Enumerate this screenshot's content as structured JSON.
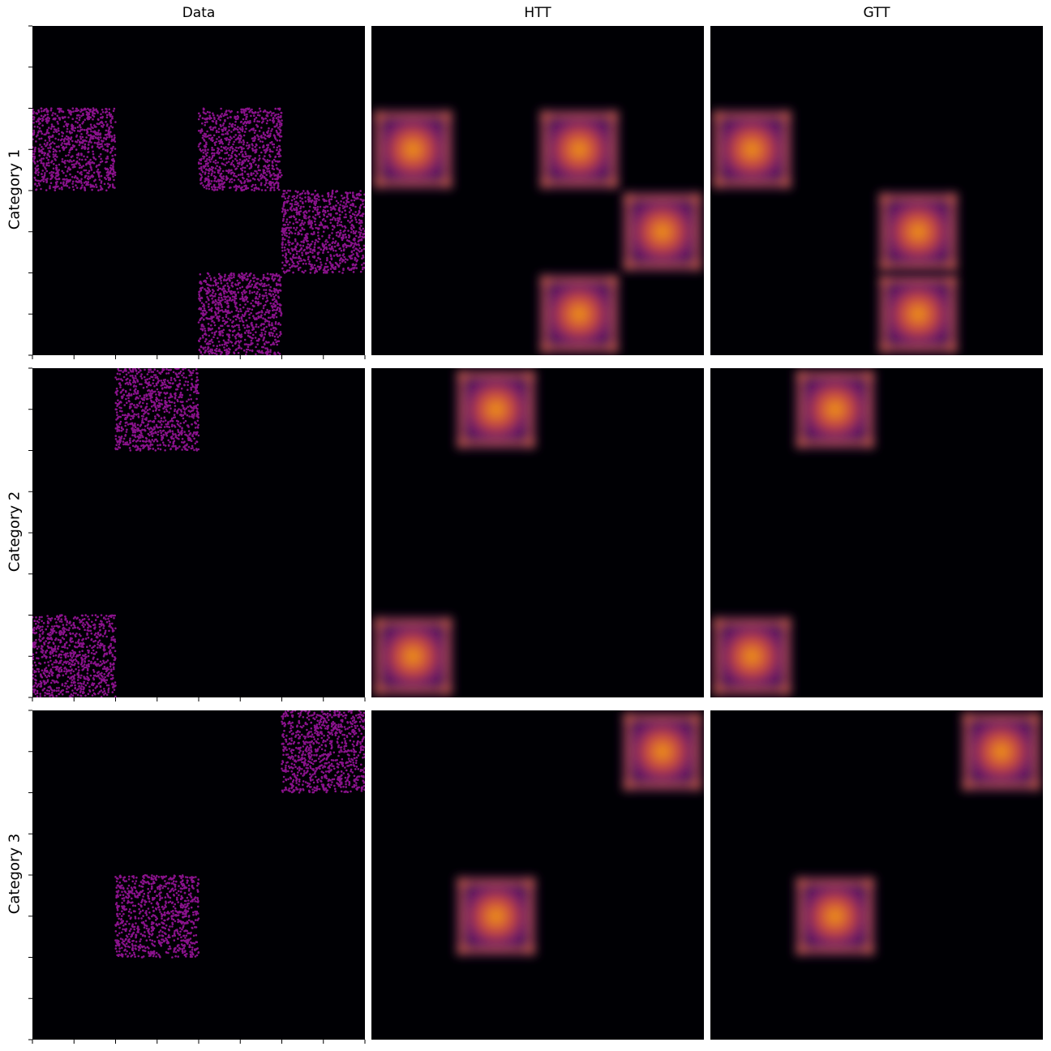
{
  "columns": [
    "Data",
    "HTT",
    "GTT"
  ],
  "rows": [
    "Category 1",
    "Category 2",
    "Category 3"
  ],
  "colors": {
    "background": "#000004",
    "point": "#8a128c",
    "colormap": "inferno"
  },
  "chart_data": {
    "type": "heatmap",
    "layout": "3x3 grid; rows = categories, columns = Data / HTT / GTT",
    "axis_range": [
      0,
      1
    ],
    "block_size": 0.25,
    "panels": [
      {
        "row": "Category 1",
        "col": "Data",
        "kind": "scatter",
        "blocks": [
          [
            0,
            0.5
          ],
          [
            0.5,
            0.5
          ],
          [
            0.75,
            0.25
          ],
          [
            0.5,
            0
          ]
        ]
      },
      {
        "row": "Category 1",
        "col": "HTT",
        "kind": "density",
        "blocks": [
          [
            0,
            0.5
          ],
          [
            0.5,
            0.5
          ],
          [
            0.75,
            0.25
          ],
          [
            0.5,
            0
          ]
        ]
      },
      {
        "row": "Category 1",
        "col": "GTT",
        "kind": "density",
        "blocks": [
          [
            0,
            0.5
          ],
          [
            0.5,
            0
          ],
          [
            0.5,
            0.25
          ]
        ]
      },
      {
        "row": "Category 2",
        "col": "Data",
        "kind": "scatter",
        "blocks": [
          [
            0.25,
            0.75
          ],
          [
            0,
            0
          ]
        ]
      },
      {
        "row": "Category 2",
        "col": "HTT",
        "kind": "density",
        "blocks": [
          [
            0.25,
            0.75
          ],
          [
            0,
            0
          ]
        ]
      },
      {
        "row": "Category 2",
        "col": "GTT",
        "kind": "density",
        "blocks": [
          [
            0.25,
            0.75
          ],
          [
            0,
            0
          ]
        ]
      },
      {
        "row": "Category 3",
        "col": "Data",
        "kind": "scatter",
        "blocks": [
          [
            0.75,
            0.75
          ],
          [
            0.25,
            0.25
          ]
        ]
      },
      {
        "row": "Category 3",
        "col": "HTT",
        "kind": "density",
        "blocks": [
          [
            0.75,
            0.75
          ],
          [
            0.25,
            0.25
          ]
        ]
      },
      {
        "row": "Category 3",
        "col": "GTT",
        "kind": "density",
        "blocks": [
          [
            0.75,
            0.75
          ],
          [
            0.25,
            0.25
          ]
        ]
      }
    ]
  }
}
